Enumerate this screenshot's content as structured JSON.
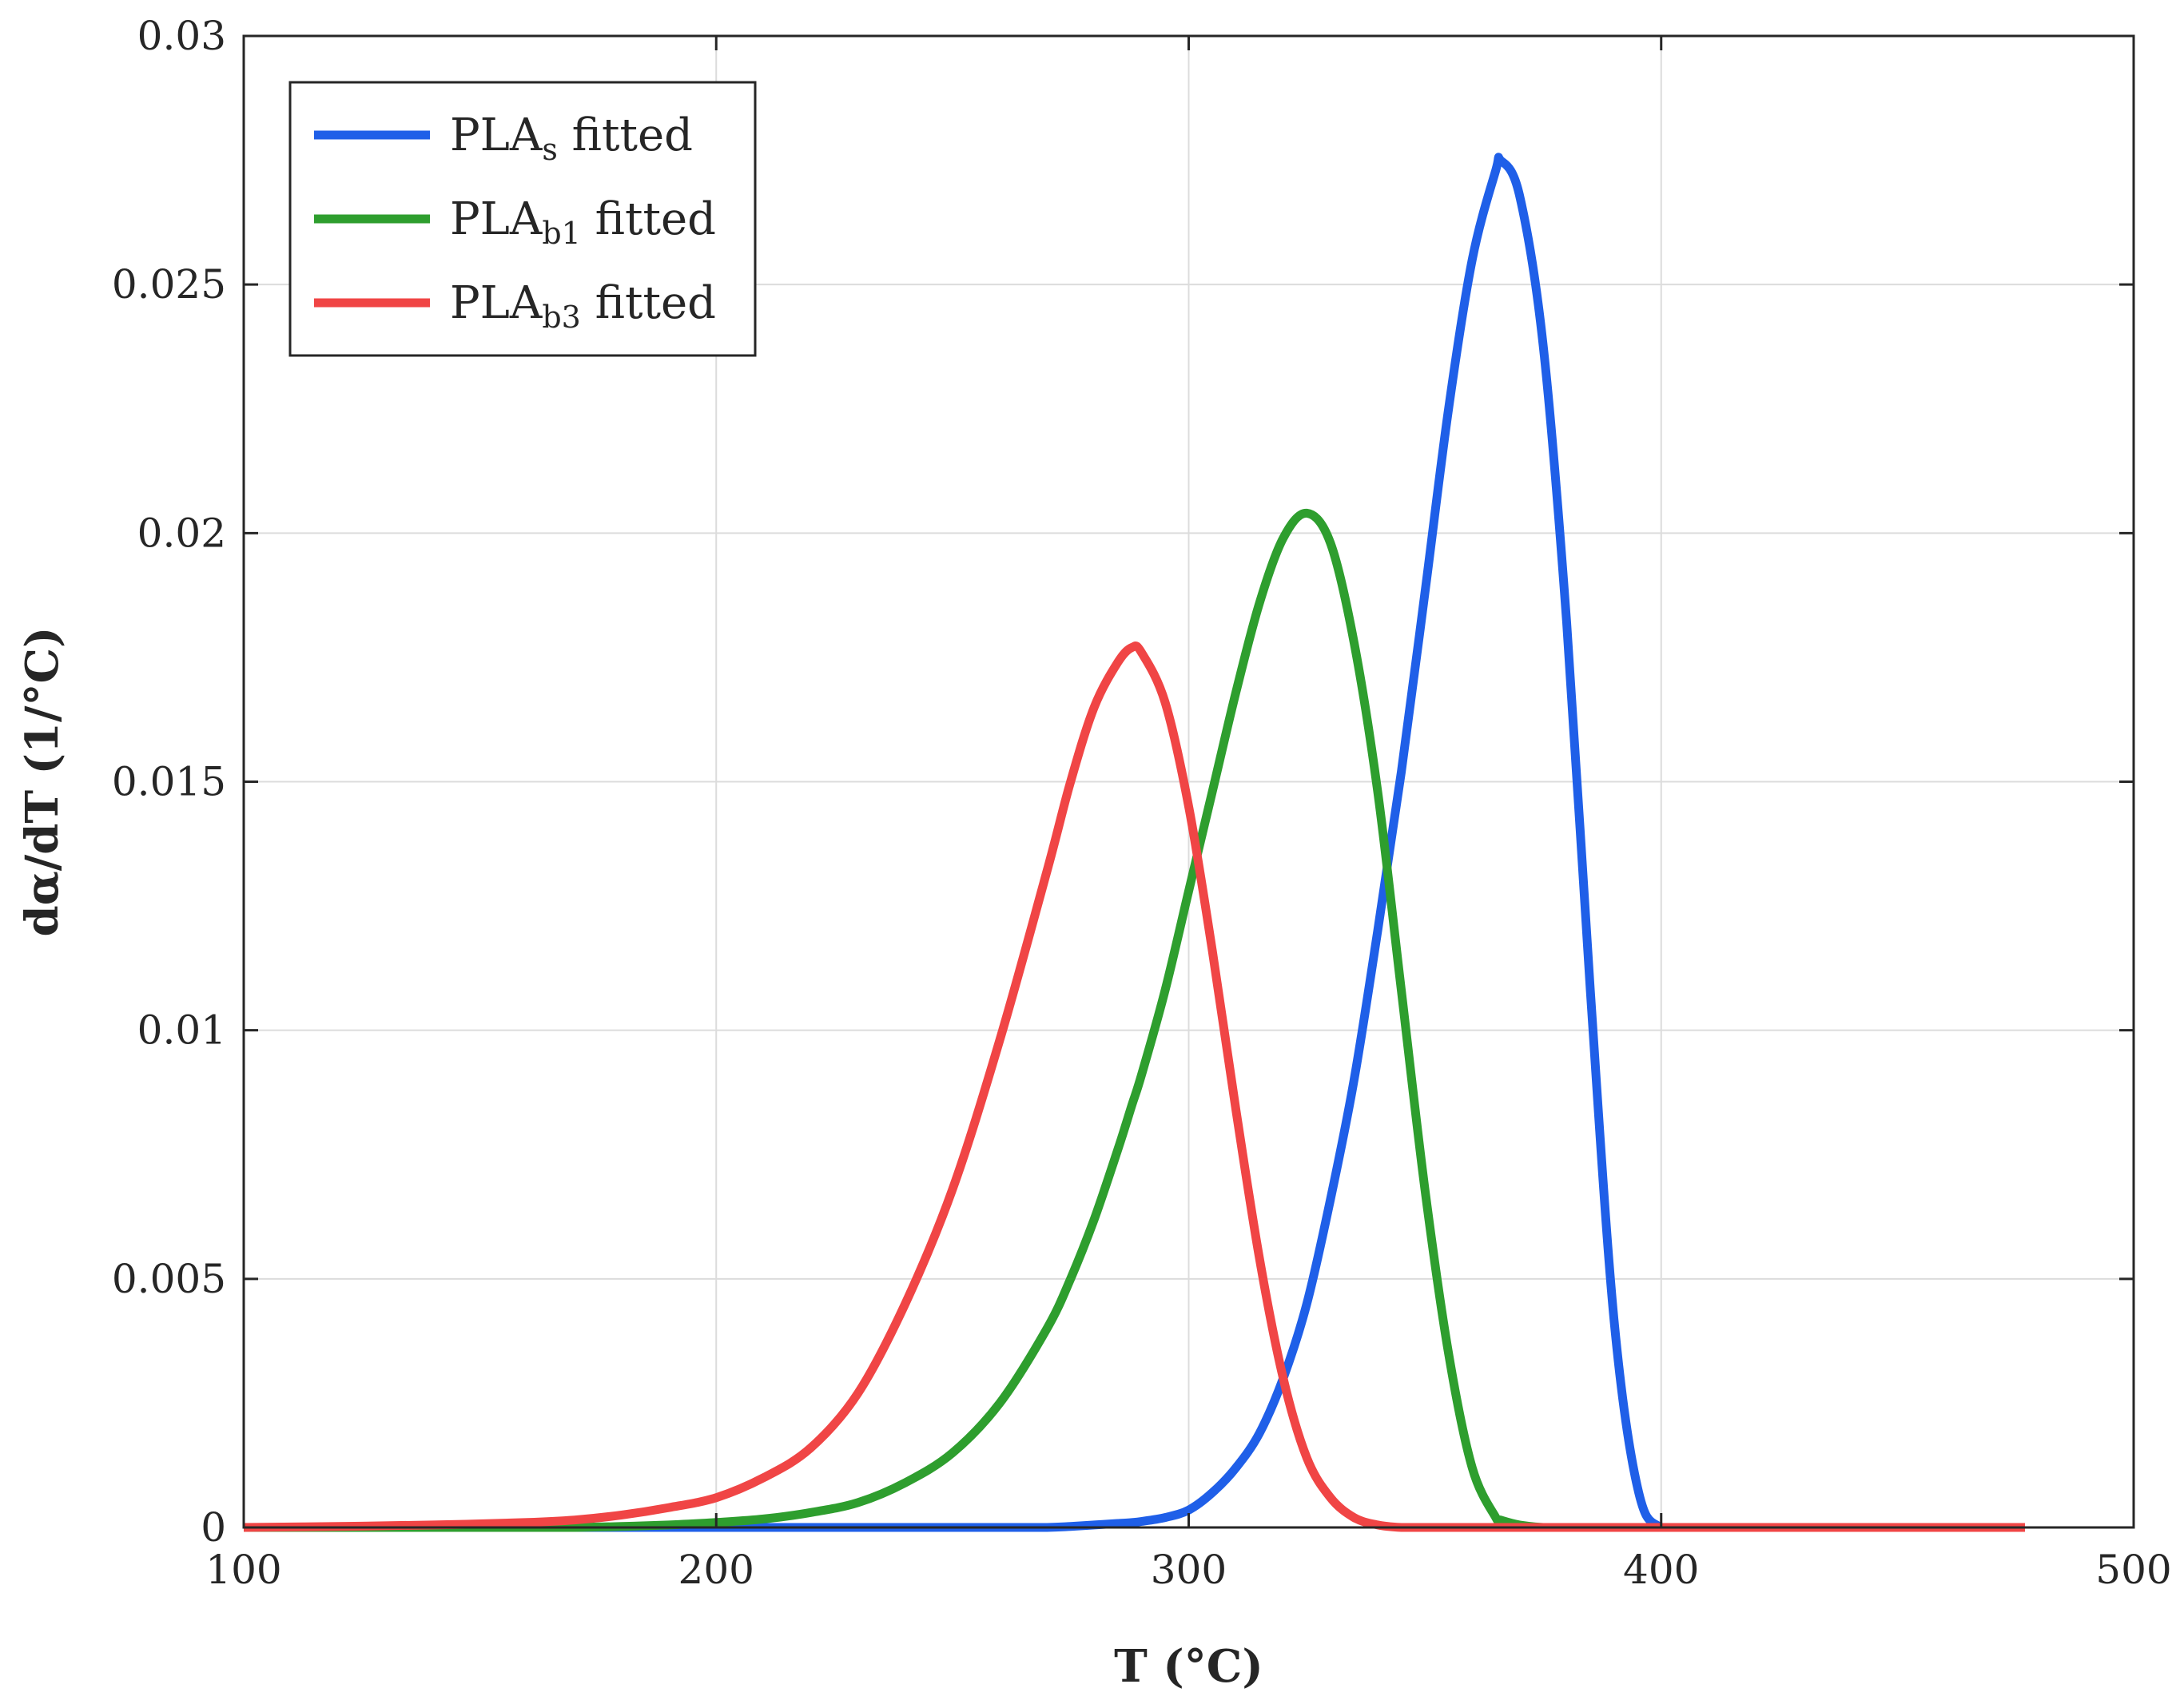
{
  "chart_data": {
    "type": "line",
    "xlabel": "T (°C)",
    "ylabel": "dα/dT (1/°C)",
    "xlim": [
      100,
      500
    ],
    "ylim": [
      0,
      0.03
    ],
    "x_ticks": [
      100,
      200,
      300,
      400,
      500
    ],
    "x_tick_labels": [
      "100",
      "200",
      "300",
      "400",
      "500"
    ],
    "y_ticks": [
      0,
      0.005,
      0.01,
      0.015,
      0.02,
      0.025,
      0.03
    ],
    "y_tick_labels": [
      "0",
      "0.005",
      "0.01",
      "0.015",
      "0.02",
      "0.025",
      "0.03"
    ],
    "grid": true,
    "legend_position": "top-left",
    "x": [
      100,
      120,
      140,
      160,
      170,
      180,
      190,
      200,
      210,
      220,
      230,
      240,
      250,
      260,
      270,
      275,
      280,
      285,
      288,
      290,
      295,
      300,
      305,
      310,
      315,
      320,
      325,
      330,
      335,
      340,
      345,
      350,
      355,
      360,
      365,
      366,
      370,
      375,
      380,
      385,
      390,
      395,
      400,
      410,
      420,
      440,
      460,
      477
    ],
    "series": [
      {
        "name": "PLAs fitted",
        "name_base": "PLA",
        "name_sub": "s",
        "name_suffix": " fitted",
        "color": "#1f5fe8",
        "values": [
          0,
          0,
          0,
          0,
          0,
          0,
          0,
          0,
          0,
          0,
          0,
          0,
          0,
          0,
          0,
          2e-05,
          5e-05,
          8e-05,
          0.0001,
          0.00012,
          0.0002,
          0.00035,
          0.0007,
          0.0012,
          0.0019,
          0.003,
          0.0045,
          0.0066,
          0.009,
          0.012,
          0.0152,
          0.0188,
          0.0225,
          0.0255,
          0.0273,
          0.0275,
          0.0268,
          0.0238,
          0.0182,
          0.0108,
          0.0042,
          0.0008,
          0,
          0,
          0,
          0,
          0,
          0
        ]
      },
      {
        "name": "PLAb1 fitted",
        "name_base": "PLA",
        "name_sub": "b1",
        "name_suffix": " fitted",
        "color": "#2e9e2e",
        "values": [
          0,
          0,
          0,
          0,
          0,
          2e-05,
          5e-05,
          0.0001,
          0.00017,
          0.0003,
          0.0005,
          0.0009,
          0.0015,
          0.0025,
          0.004,
          0.005,
          0.0062,
          0.0076,
          0.0085,
          0.0091,
          0.0108,
          0.0128,
          0.0148,
          0.0168,
          0.0186,
          0.0199,
          0.0204,
          0.0198,
          0.0178,
          0.0148,
          0.0108,
          0.0068,
          0.0035,
          0.0012,
          0.0002,
          0.00015,
          5e-05,
          0,
          0,
          0,
          0,
          0,
          0,
          0,
          0,
          0,
          0,
          0
        ]
      },
      {
        "name": "PLAb3 fitted",
        "name_base": "PLA",
        "name_sub": "b3",
        "name_suffix": " fitted",
        "color": "#f04545",
        "values": [
          0,
          2e-05,
          5e-05,
          0.0001,
          0.00015,
          0.00025,
          0.0004,
          0.0006,
          0.001,
          0.0016,
          0.0027,
          0.0045,
          0.0068,
          0.0098,
          0.0132,
          0.015,
          0.0165,
          0.0174,
          0.0177,
          0.0176,
          0.0166,
          0.0145,
          0.0116,
          0.0084,
          0.0054,
          0.003,
          0.0014,
          0.0006,
          0.0002,
          5e-05,
          0,
          0,
          0,
          0,
          0,
          0,
          0,
          0,
          0,
          0,
          0,
          0,
          0,
          0,
          0,
          0,
          0,
          0
        ]
      }
    ]
  }
}
